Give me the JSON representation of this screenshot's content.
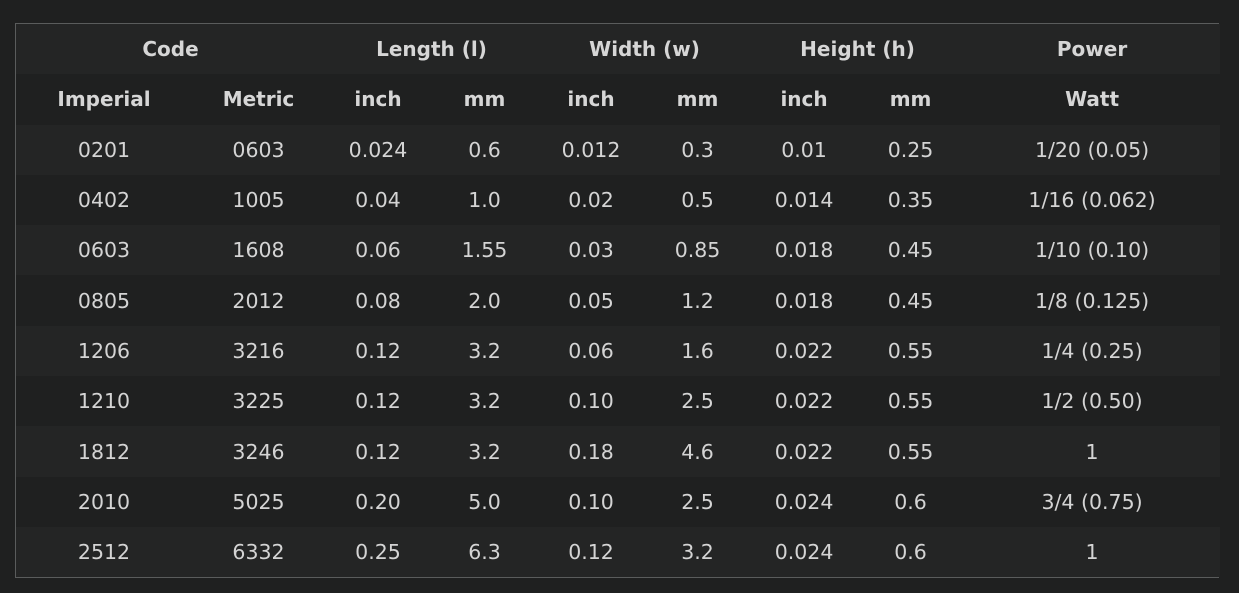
{
  "header_groups": {
    "code": "Code",
    "length": "Length (l)",
    "width": "Width (w)",
    "height": "Height (h)",
    "power": "Power"
  },
  "subheaders": {
    "imperial": "Imperial",
    "metric": "Metric",
    "length_inch": "inch",
    "length_mm": "mm",
    "width_inch": "inch",
    "width_mm": "mm",
    "height_inch": "inch",
    "height_mm": "mm",
    "power_watt": "Watt"
  },
  "rows": [
    [
      "0201",
      "0603",
      "0.024",
      "0.6",
      "0.012",
      "0.3",
      "0.01",
      "0.25",
      "1/20 (0.05)"
    ],
    [
      "0402",
      "1005",
      "0.04",
      "1.0",
      "0.02",
      "0.5",
      "0.014",
      "0.35",
      "1/16 (0.062)"
    ],
    [
      "0603",
      "1608",
      "0.06",
      "1.55",
      "0.03",
      "0.85",
      "0.018",
      "0.45",
      "1/10 (0.10)"
    ],
    [
      "0805",
      "2012",
      "0.08",
      "2.0",
      "0.05",
      "1.2",
      "0.018",
      "0.45",
      "1/8 (0.125)"
    ],
    [
      "1206",
      "3216",
      "0.12",
      "3.2",
      "0.06",
      "1.6",
      "0.022",
      "0.55",
      "1/4 (0.25)"
    ],
    [
      "1210",
      "3225",
      "0.12",
      "3.2",
      "0.10",
      "2.5",
      "0.022",
      "0.55",
      "1/2 (0.50)"
    ],
    [
      "1812",
      "3246",
      "0.12",
      "3.2",
      "0.18",
      "4.6",
      "0.022",
      "0.55",
      "1"
    ],
    [
      "2010",
      "5025",
      "0.20",
      "5.0",
      "0.10",
      "2.5",
      "0.024",
      "0.6",
      "3/4 (0.75)"
    ],
    [
      "2512",
      "6332",
      "0.25",
      "6.3",
      "0.12",
      "3.2",
      "0.024",
      "0.6",
      "1"
    ]
  ]
}
